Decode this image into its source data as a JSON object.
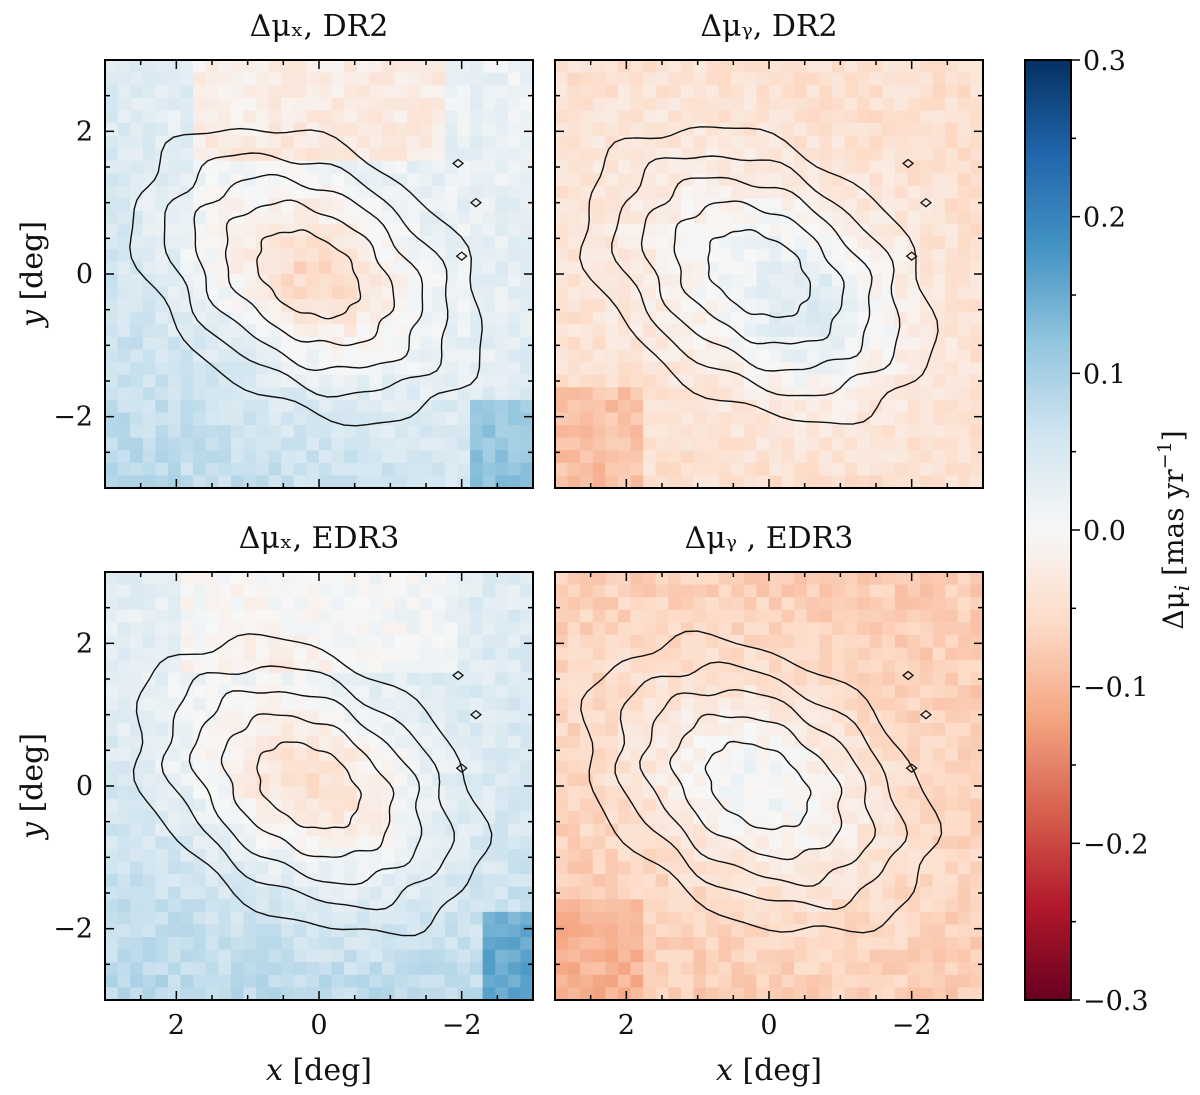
{
  "chart_data": {
    "type": "heatmap",
    "panels": [
      {
        "id": "dmux-dr2",
        "title": "Δμₓ, DR2",
        "component": "x",
        "release": "DR2"
      },
      {
        "id": "dmuy-dr2",
        "title": "Δμᵧ, DR2",
        "component": "y",
        "release": "DR2"
      },
      {
        "id": "dmux-edr3",
        "title": "Δμₓ, EDR3",
        "component": "x",
        "release": "EDR3"
      },
      {
        "id": "dmuy-edr3",
        "title": "Δμᵧ , EDR3",
        "component": "y",
        "release": "EDR3"
      }
    ],
    "xlabel_main": "x",
    "xlabel_unit": " [deg]",
    "ylabel_main": "y",
    "ylabel_unit": " [deg]",
    "xlim": [
      3,
      -3
    ],
    "ylim": [
      -3,
      3
    ],
    "x_ticks": [
      2,
      0,
      -2
    ],
    "y_ticks": [
      2,
      0,
      -2
    ],
    "x_tick_labels": [
      "2",
      "0",
      "−2"
    ],
    "y_tick_labels": [
      "2",
      "0",
      "−2"
    ],
    "colorbar": {
      "label_prefix": "Δμ",
      "label_sub": "i",
      "label_unit": " [mas yr",
      "label_exp": "−1",
      "label_close": "]",
      "vmin": -0.3,
      "vmax": 0.3,
      "ticks": [
        0.3,
        0.2,
        0.1,
        0.0,
        -0.1,
        -0.2,
        -0.3
      ],
      "tick_labels": [
        "0.3",
        "0.2",
        "0.1",
        "0.0",
        "−0.1",
        "−0.2",
        "−0.3"
      ],
      "cmap": "RdBu",
      "colors": [
        "#67001f",
        "#b2182b",
        "#d6604d",
        "#f4a582",
        "#fddbc7",
        "#f7f7f7",
        "#d1e5f0",
        "#92c5de",
        "#4393c3",
        "#2166ac",
        "#053061"
      ]
    },
    "contour_levels": 5,
    "grid": false
  }
}
